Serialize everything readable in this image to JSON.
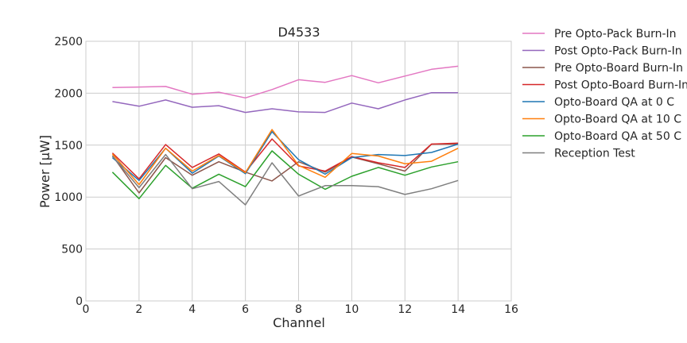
{
  "chart_data": {
    "type": "line",
    "title": "D4533",
    "xlabel": "Channel",
    "ylabel": "Power [μW]",
    "xlim": [
      0,
      16
    ],
    "ylim": [
      0,
      2500
    ],
    "xticks": [
      0,
      2,
      4,
      6,
      8,
      10,
      12,
      14,
      16
    ],
    "yticks": [
      0,
      500,
      1000,
      1500,
      2000,
      2500
    ],
    "grid": true,
    "legend_position": "outside-right",
    "x": [
      1,
      2,
      3,
      4,
      5,
      6,
      7,
      8,
      9,
      10,
      11,
      12,
      13,
      14
    ],
    "series": [
      {
        "name": "Pre Opto-Pack Burn-In",
        "color": "#e377c2",
        "values": [
          2055,
          2060,
          2065,
          1990,
          2010,
          1955,
          2035,
          2130,
          2105,
          2170,
          2100,
          2165,
          2230,
          2260
        ]
      },
      {
        "name": "Post Opto-Pack Burn-In",
        "color": "#9467bd",
        "values": [
          1920,
          1875,
          1935,
          1865,
          1880,
          1815,
          1850,
          1820,
          1815,
          1905,
          1850,
          1935,
          2005,
          2005
        ]
      },
      {
        "name": "Pre Opto-Board Burn-In",
        "color": "#8c564b",
        "values": [
          1400,
          1040,
          1380,
          1210,
          1340,
          1240,
          1155,
          1340,
          1240,
          1385,
          1320,
          1250,
          1510,
          1510
        ]
      },
      {
        "name": "Post Opto-Board Burn-In",
        "color": "#d62728",
        "values": [
          1425,
          1175,
          1505,
          1285,
          1415,
          1240,
          1560,
          1300,
          1250,
          1390,
          1330,
          1285,
          1510,
          1520
        ]
      },
      {
        "name": "Opto-Board QA at 0 C",
        "color": "#1f77b4",
        "values": [
          1380,
          1160,
          1470,
          1230,
          1395,
          1225,
          1630,
          1360,
          1220,
          1380,
          1410,
          1400,
          1430,
          1510
        ]
      },
      {
        "name": "Opto-Board QA at 10 C",
        "color": "#ff7f0e",
        "values": [
          1415,
          1120,
          1470,
          1250,
          1400,
          1235,
          1650,
          1305,
          1190,
          1420,
          1395,
          1320,
          1345,
          1470
        ]
      },
      {
        "name": "Opto-Board QA at 50 C",
        "color": "#2ca02c",
        "values": [
          1240,
          985,
          1305,
          1085,
          1220,
          1100,
          1445,
          1220,
          1075,
          1200,
          1285,
          1210,
          1290,
          1340
        ]
      },
      {
        "name": "Reception Test",
        "color": "#7f7f7f",
        "values": [
          1395,
          1090,
          1410,
          1080,
          1150,
          925,
          1330,
          1010,
          1110,
          1110,
          1100,
          1025,
          1080,
          1160
        ]
      }
    ]
  }
}
